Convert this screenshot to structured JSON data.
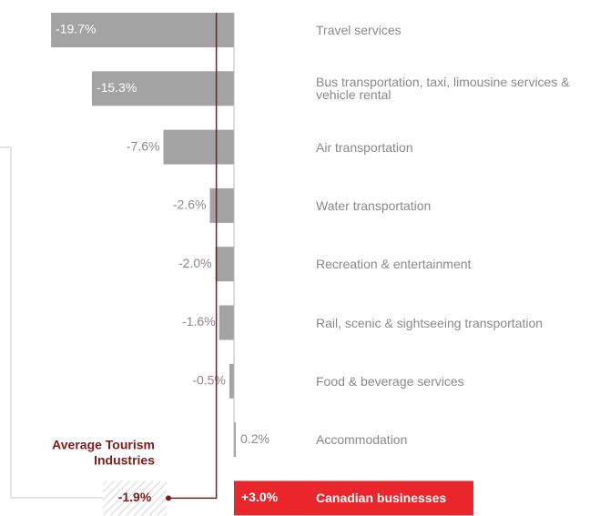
{
  "chart_data": {
    "type": "bar",
    "categories": [
      "Travel services",
      "Bus transportation, taxi, limousine services & vehicle rental",
      "Air transportation",
      "Water transportation",
      "Recreation & entertainment",
      "Rail, scenic & sightseeing transportation",
      "Food & beverage services",
      "Accommodation"
    ],
    "values": [
      -19.7,
      -15.3,
      -7.6,
      -2.6,
      -2.0,
      -1.6,
      -0.5,
      0.2
    ],
    "value_labels": [
      "-19.7%",
      "-15.3%",
      "-7.6%",
      "-2.6%",
      "-2.0%",
      "-1.6%",
      "-0.5%",
      "0.2%"
    ],
    "color": "#a3a3a3",
    "average": {
      "label": [
        "Average Tourism",
        "Industries"
      ],
      "value": -1.9,
      "value_label": "-1.9%",
      "color": "#7d1c1c"
    },
    "highlight": {
      "label": "Canadian businesses",
      "value": 3.0,
      "value_label": "+3.0%",
      "color": "#e8262b"
    }
  }
}
